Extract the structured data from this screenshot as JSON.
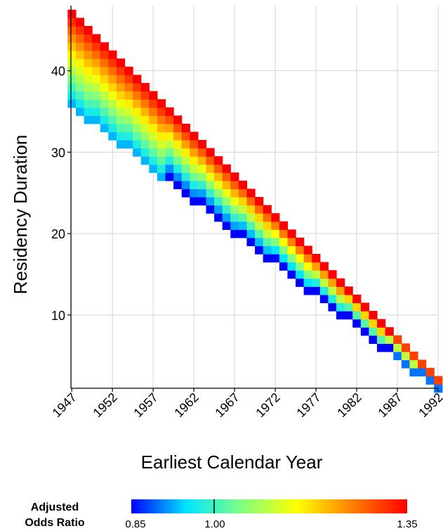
{
  "chart_data": {
    "type": "heatmap",
    "title": "",
    "xlabel": "Earliest Calendar Year",
    "ylabel": "Residency Duration",
    "x_ticks": [
      1947,
      1952,
      1957,
      1962,
      1967,
      1972,
      1977,
      1982,
      1987,
      1992
    ],
    "y_ticks": [
      10,
      20,
      30,
      40
    ],
    "xlim": [
      1946.9,
      1992.0
    ],
    "ylim": [
      1,
      48
    ],
    "grid": true,
    "cells": {
      "x_range": [
        1947,
        1992
      ],
      "y_min_by_x": "lower edge ≈ 36 at 1947, falling to 1 at 1992",
      "y_max_by_x": "upper edge = 47 at 1947, falling to 2 at 1992",
      "value_model": "odds ratio rises from ~0.85 (lower-left edge of band) to ~1.35 (upper-right edge)"
    },
    "colorbar": {
      "title_lines": [
        "Adjusted",
        "Odds Ratio"
      ],
      "min": 0.85,
      "max": 1.35,
      "ticks": [
        "0.85",
        "1.00",
        "1.35"
      ],
      "colormap": [
        "#0000ff",
        "#00e5ff",
        "#80ff80",
        "#ffff00",
        "#ff8000",
        "#ff0000"
      ]
    }
  }
}
